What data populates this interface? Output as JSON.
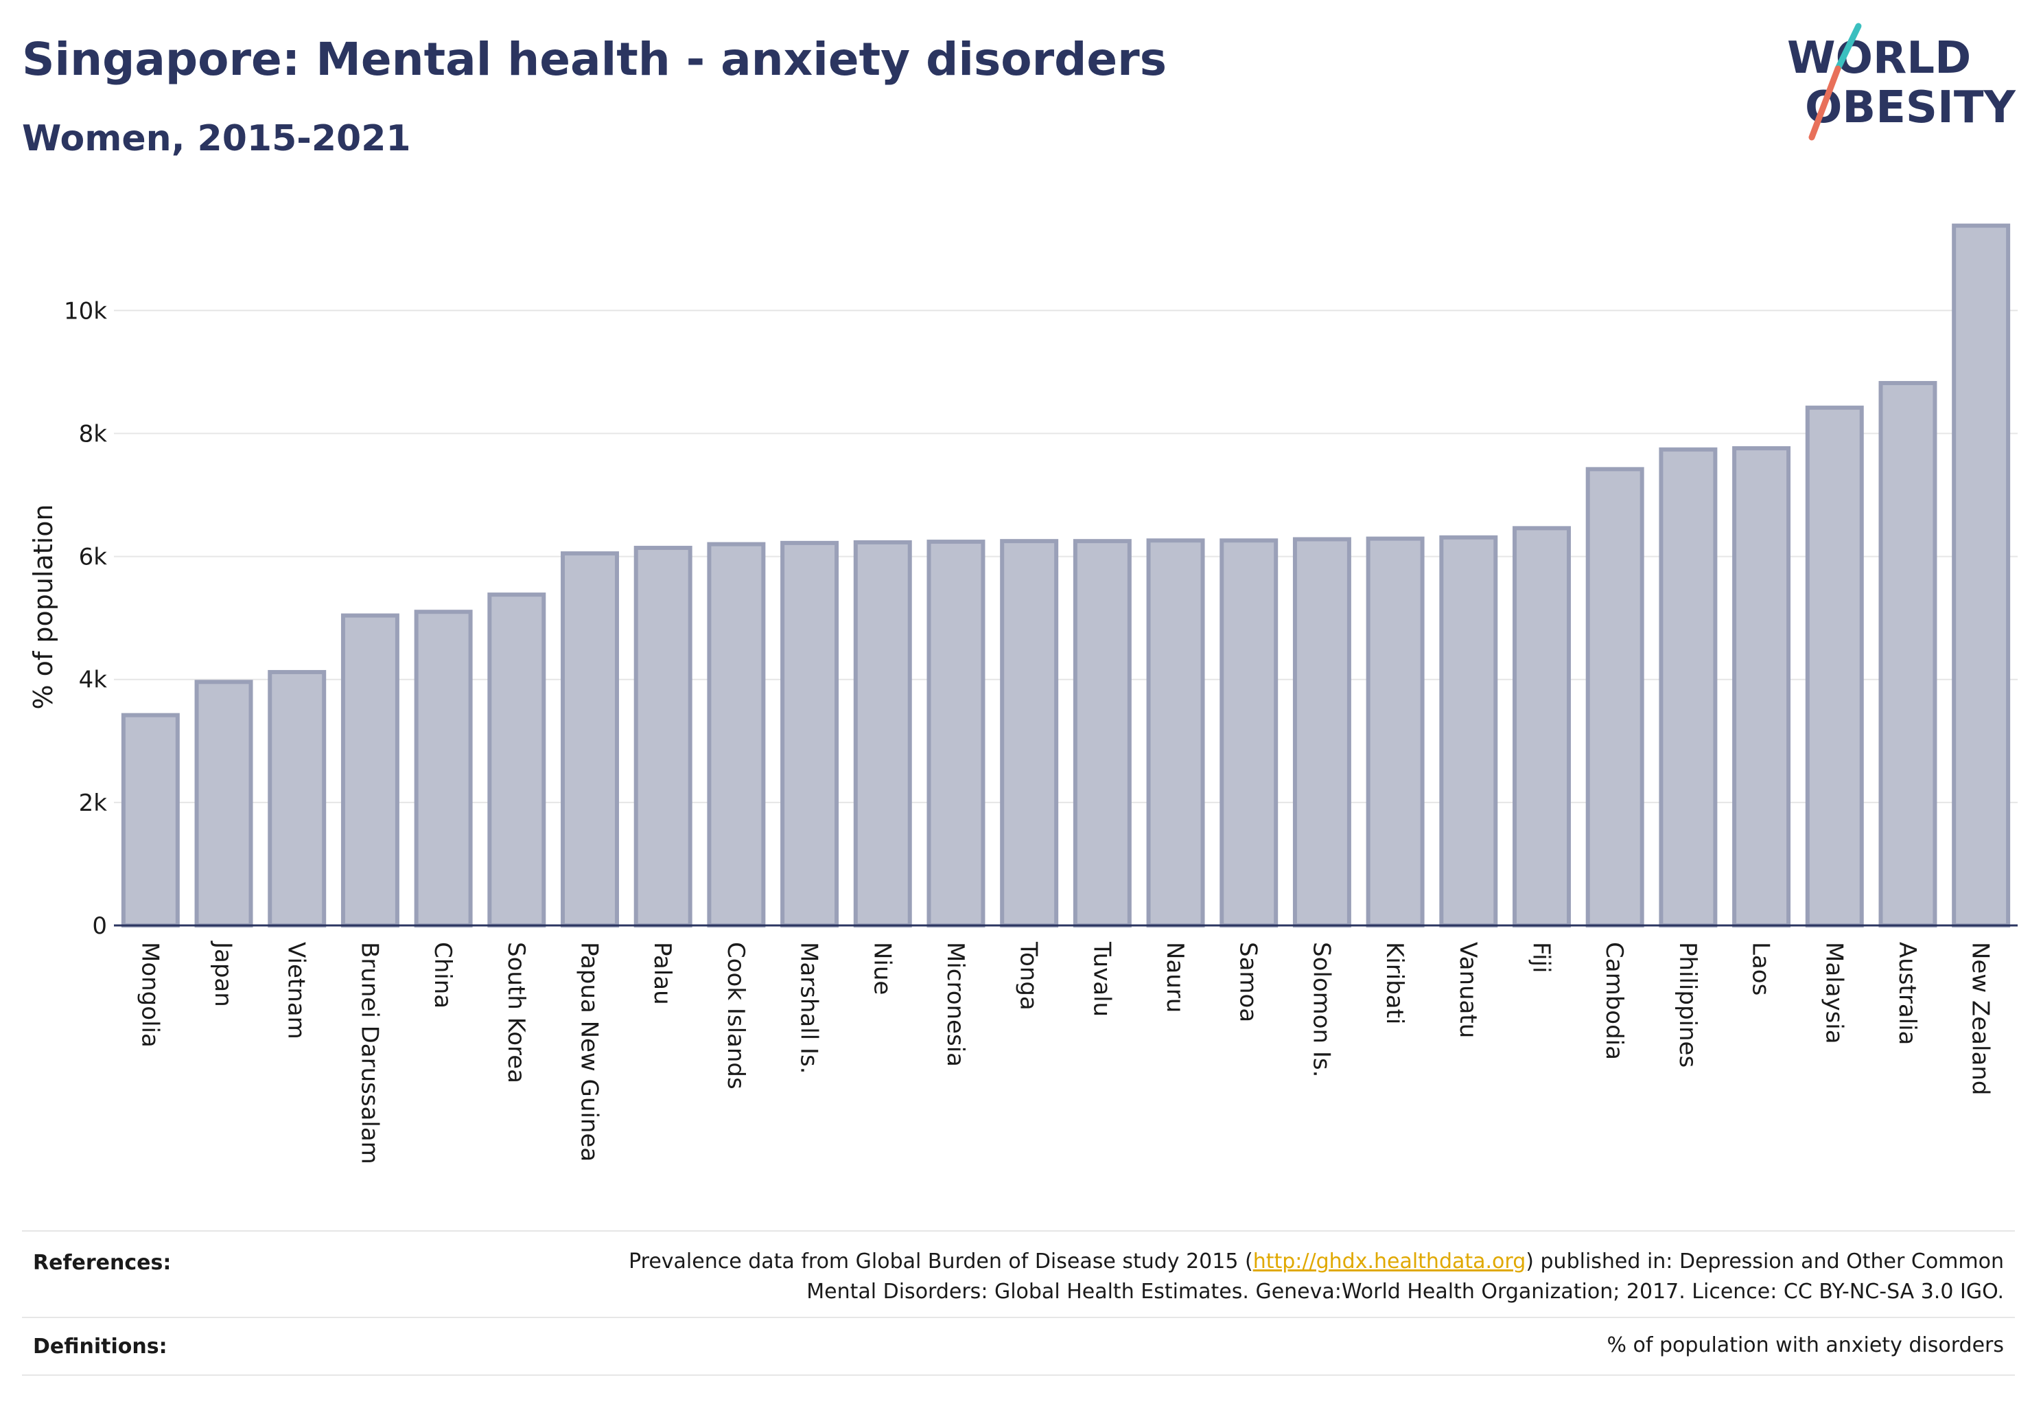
{
  "header": {
    "title": "Singapore: Mental health - anxiety disorders",
    "subtitle": "Women, 2015-2021"
  },
  "logo": {
    "line1": "WORLD",
    "line2": "OBESITY"
  },
  "colors": {
    "bar_fill": "#bcc0cf",
    "bar_stroke": "#9aa0b8",
    "text": "#2b3560",
    "link": "#e0a800",
    "logo_teal": "#3bbfbf",
    "logo_coral": "#e8705a"
  },
  "chart_data": {
    "type": "bar",
    "ylabel": "% of population",
    "xlabel": "",
    "ylim": [
      0,
      11700
    ],
    "yticks": [
      0,
      2000,
      4000,
      6000,
      8000,
      10000
    ],
    "ytick_labels": [
      "0",
      "2k",
      "4k",
      "6k",
      "8k",
      "10k"
    ],
    "grid": true,
    "categories": [
      "Mongolia",
      "Japan",
      "Vietnam",
      "Brunei Darussalam",
      "China",
      "South Korea",
      "Papua New Guinea",
      "Palau",
      "Cook Islands",
      "Marshall Is.",
      "Niue",
      "Micronesia",
      "Tonga",
      "Tuvalu",
      "Nauru",
      "Samoa",
      "Solomon Is.",
      "Kiribati",
      "Vanuatu",
      "Fiji",
      "Cambodia",
      "Philippines",
      "Laos",
      "Malaysia",
      "Australia",
      "New Zealand"
    ],
    "values": [
      3420,
      3960,
      4120,
      5040,
      5100,
      5380,
      6050,
      6140,
      6200,
      6220,
      6230,
      6240,
      6250,
      6250,
      6260,
      6260,
      6280,
      6290,
      6310,
      6460,
      7420,
      7740,
      7760,
      8420,
      8820,
      11380
    ]
  },
  "footer": {
    "references_label": "References:",
    "references_pre": "Prevalence data from Global Burden of Disease study 2015 (",
    "references_link": "http://ghdx.healthdata.org",
    "references_post": ") published in: Depression and Other Common",
    "references_line2": "Mental Disorders: Global Health Estimates. Geneva:World Health Organization; 2017. Licence: CC BY-NC-SA 3.0 IGO.",
    "definitions_label": "Definitions:",
    "definitions_text": "% of population with anxiety disorders"
  }
}
